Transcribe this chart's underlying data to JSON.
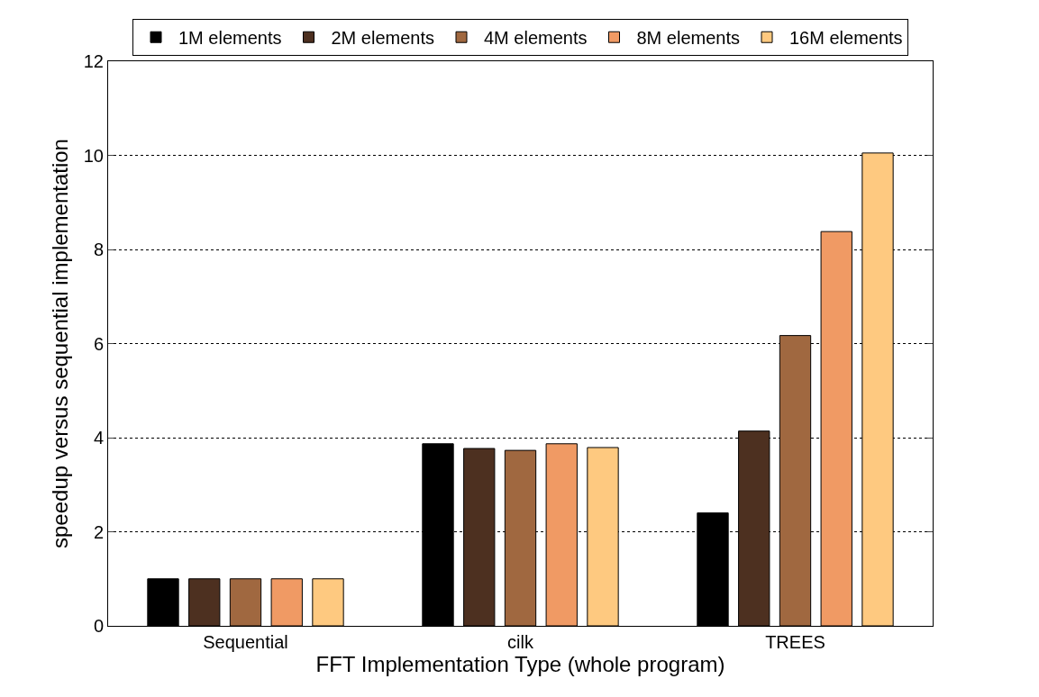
{
  "chart_data": {
    "type": "bar",
    "xlabel": "FFT Implementation Type (whole program)",
    "ylabel": "speedup versus sequential implementation",
    "categories": [
      "Sequential",
      "cilk",
      "TREES"
    ],
    "series": [
      {
        "name": "1M elements",
        "color": "#000000",
        "values": [
          1,
          3.87,
          2.4
        ]
      },
      {
        "name": "2M elements",
        "color": "#4d3020",
        "values": [
          1,
          3.77,
          4.14
        ]
      },
      {
        "name": "4M elements",
        "color": "#a06840",
        "values": [
          1,
          3.73,
          6.17
        ]
      },
      {
        "name": "8M elements",
        "color": "#f09a64",
        "values": [
          1,
          3.87,
          8.38
        ]
      },
      {
        "name": "16M elements",
        "color": "#fec980",
        "values": [
          1,
          3.79,
          10.05
        ]
      }
    ],
    "ylim": [
      0,
      12
    ],
    "yticks": [
      0,
      2,
      4,
      6,
      8,
      10,
      12
    ],
    "grid": "y",
    "legend": "top"
  }
}
